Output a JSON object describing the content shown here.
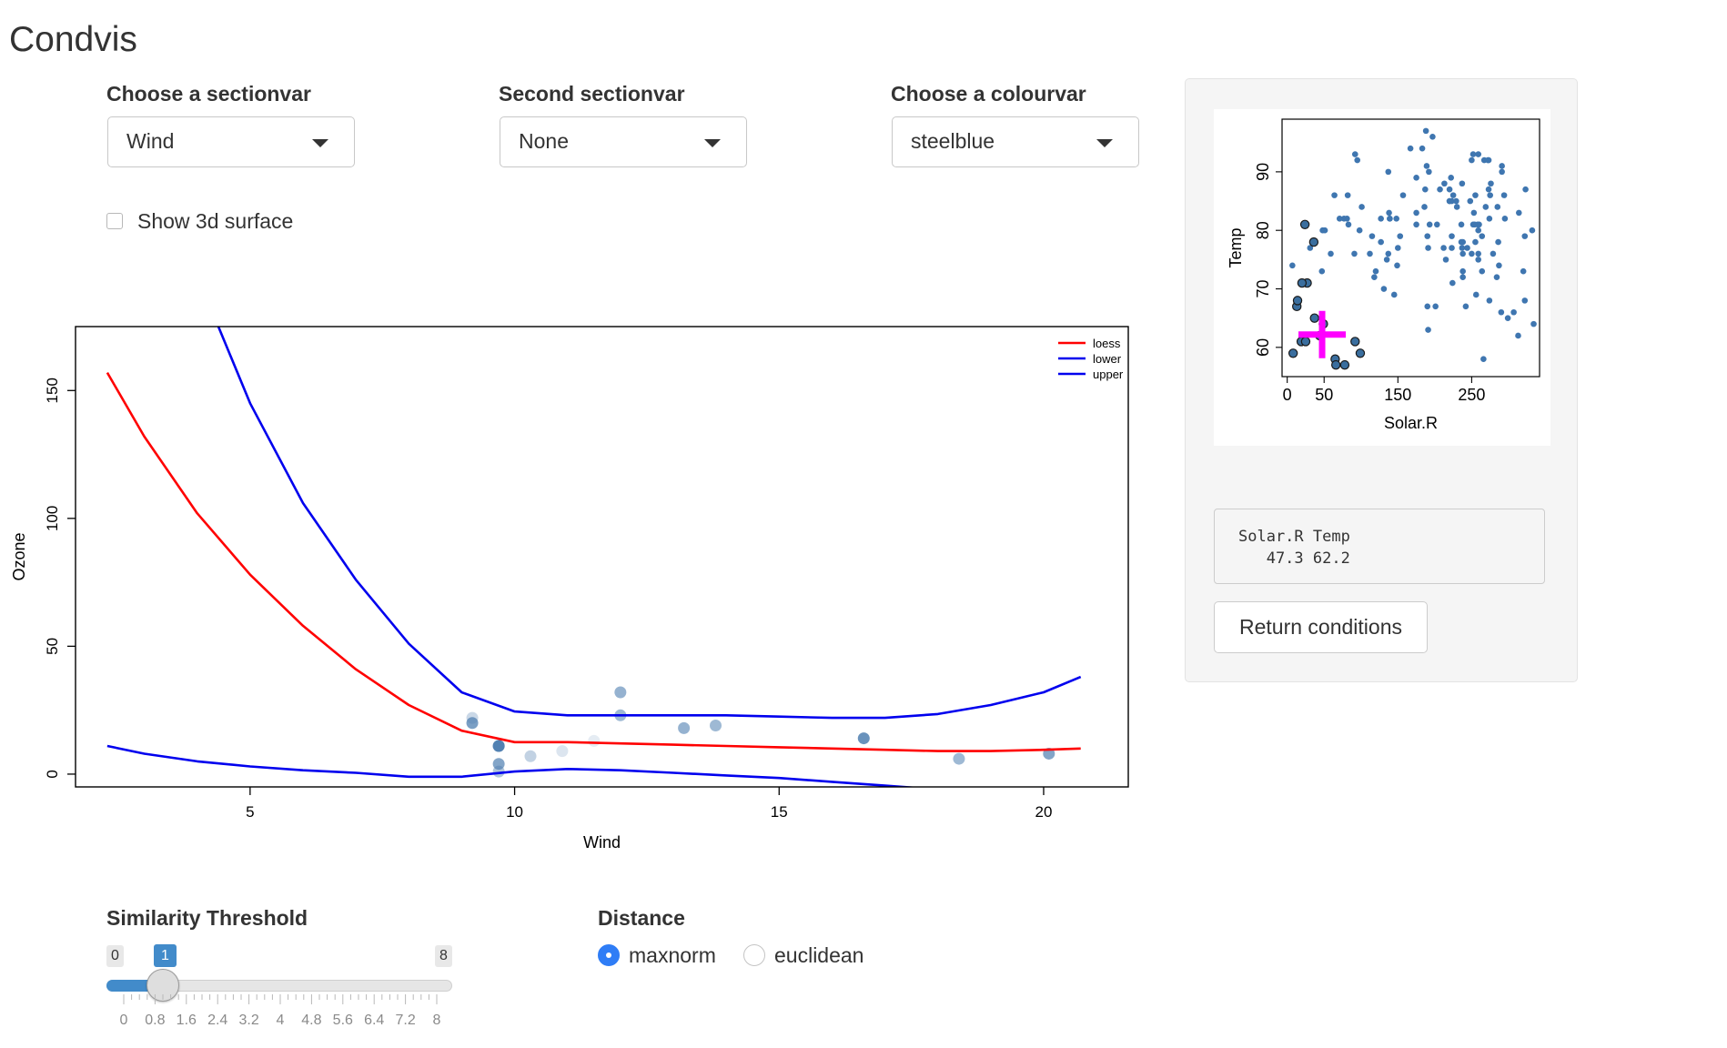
{
  "app": {
    "title": "Condvis"
  },
  "controls": {
    "sectionvar": {
      "label": "Choose a sectionvar",
      "value": "Wind"
    },
    "sectionvar2": {
      "label": "Second sectionvar",
      "value": "None"
    },
    "colourvar": {
      "label": "Choose a colourvar",
      "value": "steelblue"
    },
    "show3d": {
      "label": "Show 3d surface",
      "checked": false
    }
  },
  "condition_panel": {
    "coords_header": "Solar.R Temp",
    "coords_values": "   47.3 62.2",
    "return_button": "Return conditions"
  },
  "similarity": {
    "label": "Similarity Threshold",
    "min": "0",
    "max": "8",
    "value": "1",
    "value_fraction": 0.125,
    "ticks": [
      "0",
      "0.8",
      "1.6",
      "2.4",
      "3.2",
      "4",
      "4.8",
      "5.6",
      "6.4",
      "7.2",
      "8"
    ]
  },
  "distance": {
    "label": "Distance",
    "options": [
      "maxnorm",
      "euclidean"
    ],
    "selected": "maxnorm"
  },
  "colors": {
    "loess": "#ff0000",
    "interval": "#0000ee",
    "point": "#4f7fb0",
    "mini_point": "#3f76b0",
    "crosshair": "#ff00ff",
    "accent": "#428bca"
  },
  "chart_data": [
    {
      "type": "line",
      "xlabel": "Wind",
      "ylabel": "Ozone",
      "xlim": [
        1.7,
        21.6
      ],
      "ylim": [
        -5,
        175
      ],
      "xticks": [
        5,
        10,
        15,
        20
      ],
      "yticks": [
        0,
        50,
        100,
        150
      ],
      "legend": {
        "placement": "top-right",
        "entries": [
          "loess",
          "lower",
          "upper"
        ]
      },
      "series": [
        {
          "name": "loess",
          "color": "#ff0000",
          "x": [
            2.3,
            3,
            4,
            5,
            6,
            7,
            8,
            9,
            10,
            11,
            12,
            13,
            14,
            15,
            16,
            17,
            18,
            19,
            20,
            20.7
          ],
          "y": [
            157,
            132,
            102,
            78,
            58,
            41,
            27,
            17,
            12.5,
            12.5,
            12,
            11.5,
            11,
            10.5,
            10,
            9.5,
            9,
            9,
            9.5,
            10
          ]
        },
        {
          "name": "lower",
          "color": "#0000ee",
          "x": [
            2.3,
            3,
            4,
            5,
            6,
            7,
            8,
            9,
            10,
            11,
            12,
            13,
            14,
            15,
            16,
            17,
            18
          ],
          "y": [
            11,
            8,
            5,
            3,
            1.5,
            0.5,
            -1,
            -1,
            1,
            2,
            1.5,
            0.5,
            -0.5,
            -1.5,
            -3,
            -4.5,
            -6
          ]
        },
        {
          "name": "upper",
          "color": "#0000ee",
          "x": [
            4.4,
            5,
            6,
            7,
            8,
            9,
            10,
            11,
            12,
            13,
            14,
            15,
            16,
            17,
            18,
            19,
            20,
            20.7
          ],
          "y": [
            175,
            145,
            106,
            76,
            51,
            32,
            24.5,
            23,
            23,
            23,
            23,
            22.5,
            22,
            22,
            23.5,
            27,
            32,
            38
          ]
        }
      ],
      "points": {
        "name": "observations",
        "x": [
          9.2,
          9.2,
          9.7,
          9.7,
          9.7,
          9.7,
          10.3,
          10.9,
          11.5,
          12.0,
          12.0,
          13.2,
          13.8,
          16.6,
          18.4,
          20.1
        ],
        "y": [
          20,
          22,
          11,
          11,
          4,
          1,
          7,
          9,
          13,
          32,
          23,
          18,
          19,
          14,
          6,
          8
        ],
        "similarity": [
          0.75,
          0.3,
          0.9,
          0.85,
          0.7,
          0.45,
          0.35,
          0.2,
          0.15,
          0.6,
          0.55,
          0.6,
          0.55,
          0.85,
          0.55,
          0.7
        ]
      }
    },
    {
      "type": "scatter",
      "xlabel": "Solar.R",
      "ylabel": "Temp",
      "xlim": [
        -7,
        342
      ],
      "ylim": [
        55,
        99
      ],
      "xticks": [
        0,
        50,
        150,
        250
      ],
      "yticks": [
        60,
        70,
        80,
        90
      ],
      "selected": {
        "x": 47.3,
        "y": 62.2
      },
      "x": [
        190,
        118,
        149,
        313,
        299,
        99,
        19,
        256,
        290,
        274,
        65,
        334,
        307,
        78,
        322,
        44,
        8,
        320,
        25,
        92,
        66,
        266,
        13,
        252,
        223,
        279,
        286,
        287,
        242,
        186,
        220,
        264,
        127,
        273,
        291,
        323,
        259,
        250,
        148,
        332,
        322,
        191,
        284,
        37,
        120,
        137,
        150,
        59,
        91,
        250,
        135,
        127,
        47,
        98,
        31,
        138,
        269,
        248,
        236,
        101,
        175,
        314,
        276,
        267,
        272,
        175,
        139,
        264,
        175,
        291,
        48,
        260,
        274,
        285,
        187,
        220,
        7,
        258,
        295,
        294,
        223,
        81,
        82,
        213,
        275,
        253,
        254,
        83,
        24,
        77,
        255,
        229,
        207,
        222,
        137,
        192,
        273,
        157,
        64,
        71,
        51,
        115,
        244,
        190,
        259,
        36,
        255,
        212,
        238,
        215,
        153,
        203,
        225,
        237,
        188,
        167,
        197,
        183,
        189,
        95,
        92,
        252,
        220,
        230,
        259,
        236,
        259,
        238,
        24,
        112,
        237,
        224,
        27,
        238,
        201,
        238,
        14,
        139,
        49,
        20,
        193,
        145,
        191,
        131,
        223
      ],
      "y": [
        67,
        72,
        74,
        62,
        65,
        59,
        61,
        69,
        66,
        68,
        58,
        64,
        66,
        57,
        68,
        62,
        59,
        73,
        61,
        61,
        57,
        58,
        67,
        81,
        79,
        76,
        78,
        74,
        67,
        84,
        85,
        79,
        82,
        87,
        90,
        87,
        93,
        92,
        82,
        80,
        79,
        77,
        72,
        65,
        73,
        76,
        77,
        76,
        76,
        76,
        75,
        78,
        73,
        80,
        77,
        83,
        84,
        85,
        81,
        84,
        83,
        83,
        88,
        92,
        92,
        89,
        82,
        73,
        81,
        91,
        80,
        81,
        82,
        84,
        87,
        85,
        74,
        81,
        82,
        86,
        85,
        82,
        86,
        88,
        86,
        83,
        81,
        81,
        81,
        82,
        86,
        85,
        87,
        89,
        90,
        90,
        92,
        86,
        86,
        82,
        80,
        79,
        77,
        79,
        76,
        78,
        78,
        77,
        72,
        75,
        79,
        81,
        86,
        88,
        97,
        94,
        96,
        94,
        91,
        92,
        93,
        93,
        87,
        84,
        80,
        78,
        75,
        73,
        81,
        76,
        77,
        71,
        71,
        78,
        67,
        76,
        68,
        82,
        64,
        71,
        81,
        69,
        63,
        70,
        77
      ],
      "near": [
        0,
        0,
        0,
        0,
        0,
        1,
        1,
        0,
        0,
        0,
        1,
        0,
        0,
        1,
        0,
        1,
        1,
        0,
        1,
        1,
        1,
        0,
        1,
        0,
        0,
        0,
        0,
        0,
        0,
        0,
        0,
        0,
        0,
        0,
        0,
        0,
        0,
        0,
        0,
        0,
        0,
        0,
        0,
        1,
        0,
        0,
        0,
        0,
        0,
        0,
        0,
        0,
        0,
        0,
        0,
        0,
        0,
        0,
        0,
        0,
        0,
        0,
        0,
        0,
        0,
        0,
        0,
        0,
        0,
        0,
        0,
        0,
        0,
        0,
        0,
        0,
        0,
        0,
        0,
        0,
        0,
        0,
        0,
        0,
        0,
        0,
        0,
        0,
        0,
        0,
        0,
        0,
        0,
        0,
        0,
        0,
        0,
        0,
        0,
        0,
        0,
        0,
        0,
        0,
        0,
        1,
        0,
        0,
        0,
        0,
        0,
        0,
        0,
        0,
        0,
        0,
        0,
        0,
        0,
        0,
        0,
        0,
        0,
        0,
        0,
        0,
        0,
        0,
        1,
        0,
        0,
        0,
        1,
        0,
        0,
        0,
        1,
        0,
        1,
        1,
        0,
        0,
        0,
        0,
        0
      ]
    }
  ]
}
